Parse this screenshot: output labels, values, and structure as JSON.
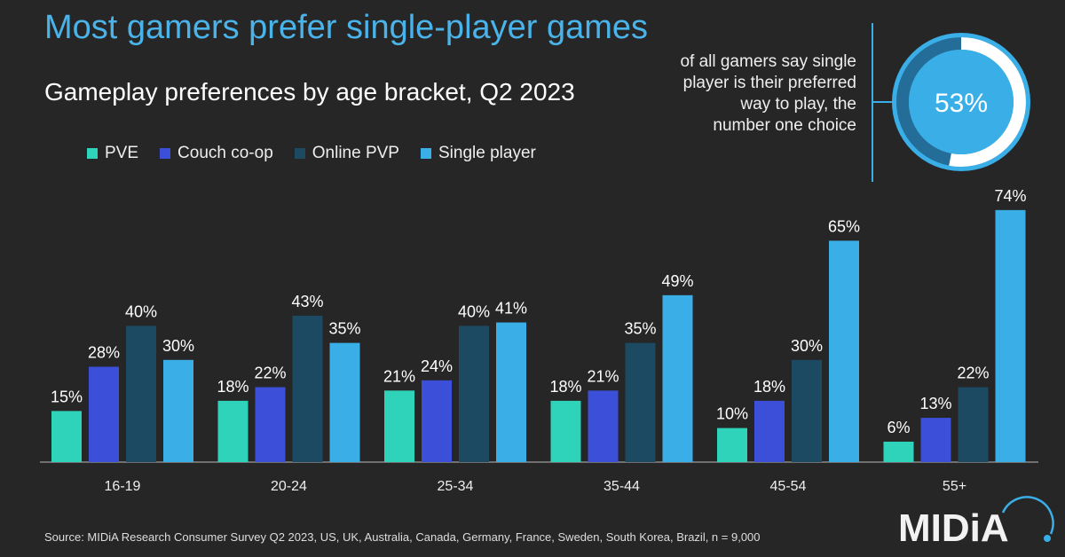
{
  "title": "Most gamers prefer single-player games",
  "subtitle": "Gameplay preferences by age bracket, Q2 2023",
  "callout": {
    "text": "of all gamers say single player is their preferred way to play, the number one choice",
    "value": 53,
    "value_label": "53%"
  },
  "source": "Source: MIDiA Research Consumer Survey Q2 2023, US, UK, Australia, Canada, Germany, France, Sweden, South Korea, Brazil, n = 9,000",
  "logo": "MIDiA",
  "colors": {
    "background": "#262626",
    "title": "#4ab4ea",
    "pve": "#2fd3b9",
    "couch": "#3b4fd8",
    "online": "#1b4a62",
    "single": "#3aaee6"
  },
  "chart_data": {
    "type": "bar",
    "title": "Gameplay preferences by age bracket, Q2 2023",
    "categories": [
      "16-19",
      "20-24",
      "25-34",
      "35-44",
      "45-54",
      "55+"
    ],
    "series": [
      {
        "name": "PVE",
        "color": "#2fd3b9",
        "values": [
          15,
          18,
          21,
          18,
          10,
          6
        ]
      },
      {
        "name": "Couch co-op",
        "color": "#3b4fd8",
        "values": [
          28,
          22,
          24,
          21,
          18,
          13
        ]
      },
      {
        "name": "Online PVP",
        "color": "#1b4a62",
        "values": [
          40,
          43,
          40,
          35,
          30,
          22
        ]
      },
      {
        "name": "Single player",
        "color": "#3aaee6",
        "values": [
          30,
          35,
          41,
          49,
          65,
          74
        ]
      }
    ],
    "value_format": "%",
    "ylim": [
      0,
      80
    ],
    "grid": false,
    "legend": "top-left"
  }
}
